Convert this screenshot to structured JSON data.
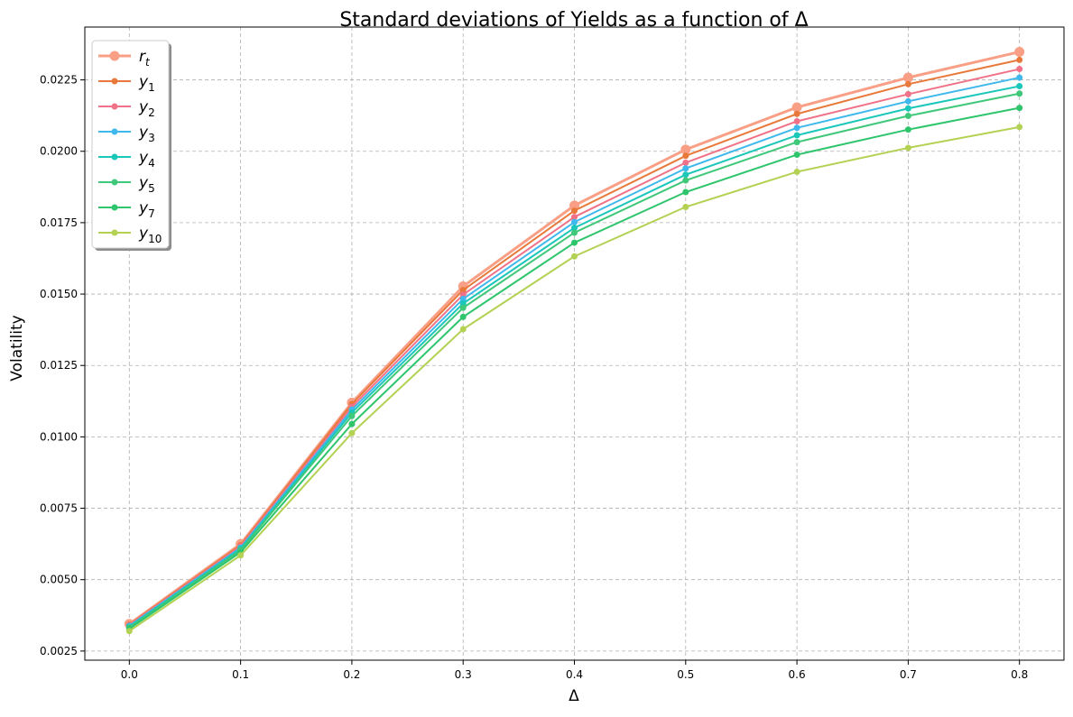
{
  "chart_data": {
    "type": "line",
    "title": "Standard deviations of Yields as a function of Δ",
    "xlabel": "Δ",
    "ylabel": "Volatility",
    "x": [
      0.0,
      0.1,
      0.2,
      0.3,
      0.4,
      0.5,
      0.6,
      0.7,
      0.8
    ],
    "xticks": [
      "0.0",
      "0.1",
      "0.2",
      "0.3",
      "0.4",
      "0.5",
      "0.6",
      "0.7",
      "0.8"
    ],
    "yticks": [
      "0.0025",
      "0.0050",
      "0.0075",
      "0.0100",
      "0.0125",
      "0.0150",
      "0.0175",
      "0.0200",
      "0.0225"
    ],
    "xlim": [
      -0.04,
      0.84
    ],
    "ylim": [
      0.00218,
      0.02435
    ],
    "grid": true,
    "legend_position": "top-left",
    "series": [
      {
        "name": "r",
        "sub": "t",
        "color": "#f99f86",
        "values": [
          0.00345,
          0.00625,
          0.0112,
          0.01527,
          0.0181,
          0.02006,
          0.02154,
          0.02258,
          0.02348
        ],
        "line_width": 3,
        "marker_radius": 5.5
      },
      {
        "name": "y",
        "sub": "1",
        "color": "#e8793a",
        "values": [
          0.00343,
          0.00621,
          0.01115,
          0.01514,
          0.01792,
          0.01984,
          0.02131,
          0.02235,
          0.0232
        ],
        "line_width": 2,
        "marker_radius": 3.5
      },
      {
        "name": "y",
        "sub": "2",
        "color": "#f07288",
        "values": [
          0.00341,
          0.00617,
          0.01105,
          0.01498,
          0.0177,
          0.0196,
          0.02105,
          0.022,
          0.02288
        ],
        "line_width": 2,
        "marker_radius": 3.5
      },
      {
        "name": "y",
        "sub": "3",
        "color": "#3fb8ed",
        "values": [
          0.00338,
          0.00612,
          0.01095,
          0.01483,
          0.01752,
          0.0194,
          0.02082,
          0.02175,
          0.02258
        ],
        "line_width": 2,
        "marker_radius": 3.5
      },
      {
        "name": "y",
        "sub": "4",
        "color": "#1ac7b9",
        "values": [
          0.00335,
          0.00608,
          0.01085,
          0.01467,
          0.01732,
          0.01918,
          0.02056,
          0.0215,
          0.02228
        ],
        "line_width": 2,
        "marker_radius": 3.5
      },
      {
        "name": "y",
        "sub": "5",
        "color": "#40c87a",
        "values": [
          0.00332,
          0.00603,
          0.01073,
          0.01452,
          0.01715,
          0.01898,
          0.02032,
          0.02124,
          0.02202
        ],
        "line_width": 2,
        "marker_radius": 3.5
      },
      {
        "name": "y",
        "sub": "7",
        "color": "#2ec56c",
        "values": [
          0.00328,
          0.00596,
          0.01045,
          0.0142,
          0.0168,
          0.01857,
          0.01988,
          0.02076,
          0.02152
        ],
        "line_width": 2,
        "marker_radius": 3.5
      },
      {
        "name": "y",
        "sub": "10",
        "color": "#b3d152",
        "values": [
          0.0032,
          0.00585,
          0.01013,
          0.01377,
          0.01632,
          0.01805,
          0.01928,
          0.02012,
          0.02085
        ],
        "line_width": 2,
        "marker_radius": 3.5
      }
    ]
  }
}
